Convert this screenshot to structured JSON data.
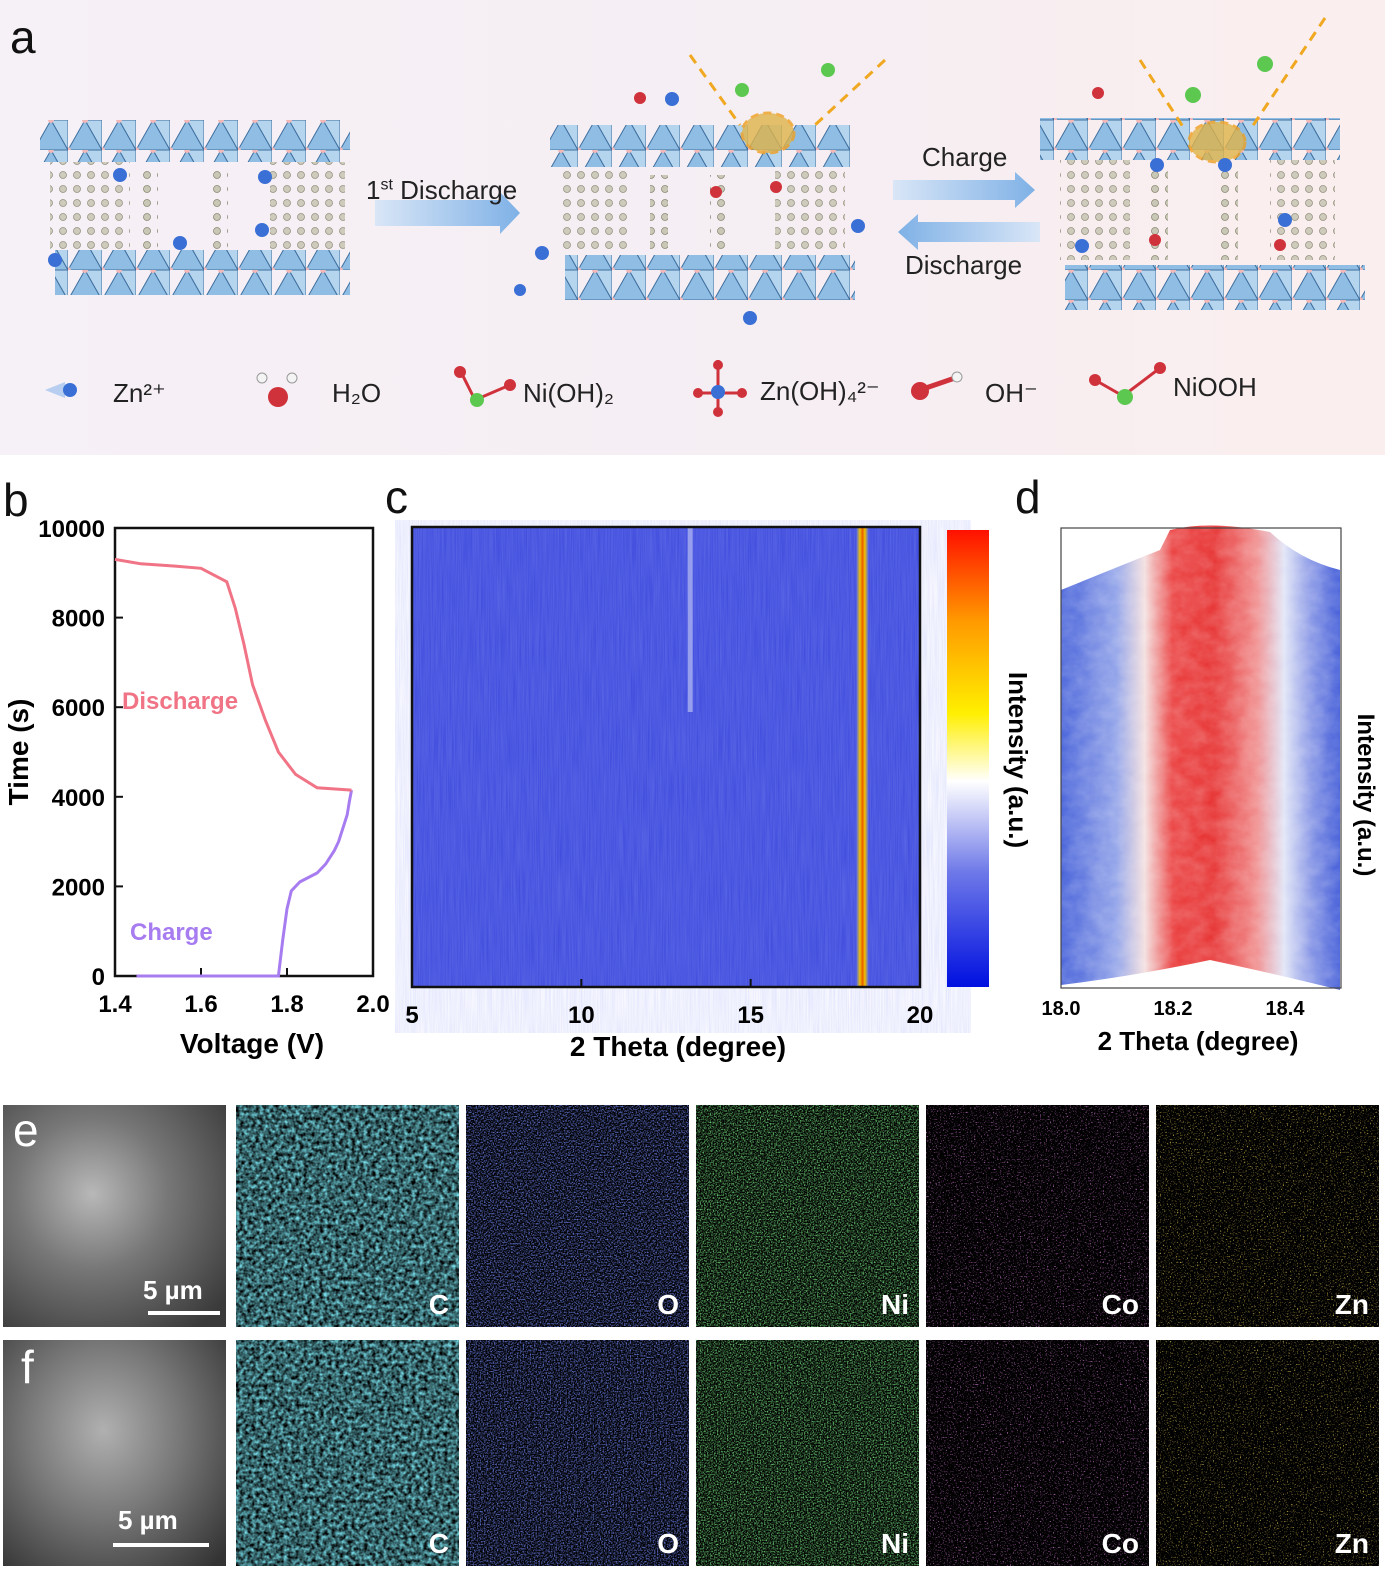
{
  "panel_labels": {
    "a": "a",
    "b": "b",
    "c": "c",
    "d": "d",
    "e": "e",
    "f": "f"
  },
  "panel_a": {
    "arrow_first_sup": "st",
    "arrow_first_num": "1",
    "arrow_first_word": "Discharge",
    "arrow_charge": "Charge",
    "arrow_discharge": "Discharge",
    "legend": [
      {
        "name": "zn",
        "label": "Zn²⁺",
        "color": "#3a6fd6"
      },
      {
        "name": "h2o",
        "label": "H₂O",
        "color": "#d0323b"
      },
      {
        "name": "nioh2",
        "label": "Ni(OH)₂",
        "color": "#5cc850"
      },
      {
        "name": "znoh4",
        "label": "Zn(OH)₄²⁻",
        "color": "#3a6fd6"
      },
      {
        "name": "oh",
        "label": "OH⁻",
        "color": "#d0323b"
      },
      {
        "name": "niooh",
        "label": "NiOOH",
        "color": "#5cc850"
      }
    ]
  },
  "chart_data": [
    {
      "panel": "b",
      "type": "line",
      "xlabel": "Voltage (V)",
      "ylabel": "Time (s)",
      "xlim": [
        1.4,
        2.0
      ],
      "ylim": [
        0,
        10000
      ],
      "xticks": [
        "1.4",
        "1.6",
        "1.8",
        "2.0"
      ],
      "yticks": [
        "0",
        "2000",
        "4000",
        "6000",
        "8000",
        "10000"
      ],
      "series": [
        {
          "name": "Charge",
          "color": "#a77cf0",
          "x": [
            1.45,
            1.78,
            1.79,
            1.8,
            1.81,
            1.83,
            1.87,
            1.89,
            1.91,
            1.92,
            1.93,
            1.94,
            1.945,
            1.95
          ],
          "y": [
            0,
            0,
            800,
            1500,
            1900,
            2100,
            2300,
            2500,
            2800,
            3000,
            3300,
            3600,
            3900,
            4150
          ]
        },
        {
          "name": "Discharge",
          "color": "#f07485",
          "x": [
            1.95,
            1.87,
            1.82,
            1.78,
            1.75,
            1.72,
            1.7,
            1.68,
            1.66,
            1.6,
            1.54,
            1.46,
            1.4
          ],
          "y": [
            4150,
            4200,
            4500,
            5000,
            5700,
            6500,
            7400,
            8200,
            8800,
            9100,
            9150,
            9200,
            9300
          ]
        }
      ]
    },
    {
      "panel": "c",
      "type": "heatmap",
      "xlabel": "2 Theta (degree)",
      "colorbar_label": "Intensity (a.u.)",
      "xlim": [
        5,
        20
      ],
      "xticks": [
        "5",
        "10",
        "15",
        "20"
      ],
      "peaks": [
        {
          "x": 18.3,
          "label": "strong"
        },
        {
          "x": 13.2,
          "label": "weak"
        }
      ]
    },
    {
      "panel": "d",
      "type": "heatmap",
      "xlabel": "2 Theta (degree)",
      "zlabel": "Intensity (a.u.)",
      "xlim": [
        18.0,
        18.5
      ],
      "xticks": [
        "18.0",
        "18.2",
        "18.4"
      ],
      "peak_center": 18.25
    }
  ],
  "panel_e": {
    "scale": "5  µm",
    "maps": [
      {
        "name": "c",
        "label": "C",
        "color": "#2fb8d0"
      },
      {
        "name": "o",
        "label": "O",
        "color": "#2a3ee8"
      },
      {
        "name": "ni",
        "label": "Ni",
        "color": "#31c83a"
      },
      {
        "name": "co",
        "label": "Co",
        "color": "#c43ad0"
      },
      {
        "name": "zn",
        "label": "Zn",
        "color": "#d4a019"
      }
    ]
  },
  "panel_f": {
    "scale": "5  µm",
    "maps": [
      {
        "name": "c",
        "label": "C",
        "color": "#2fb8d0"
      },
      {
        "name": "o",
        "label": "O",
        "color": "#2a3ee8"
      },
      {
        "name": "ni",
        "label": "Ni",
        "color": "#31c83a"
      },
      {
        "name": "co",
        "label": "Co",
        "color": "#c43ad0"
      },
      {
        "name": "zn",
        "label": "Zn",
        "color": "#d4a019"
      }
    ]
  }
}
